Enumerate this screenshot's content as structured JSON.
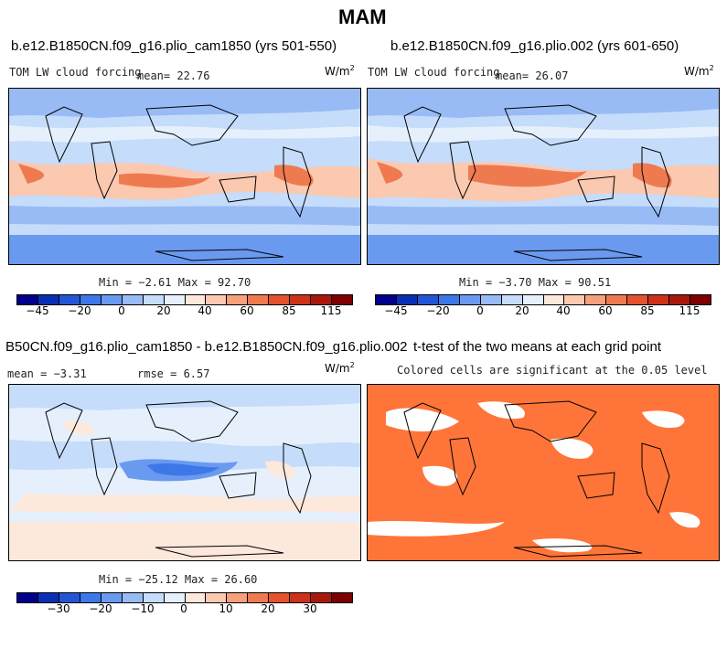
{
  "title": "MAM",
  "panels": {
    "p1": {
      "title": "b.e12.B1850CN.f09_g16.plio_cam1850 (yrs 501-550)",
      "variable": "TOM LW cloud forcing",
      "mean_text": "mean=  22.76",
      "unit": "W/m",
      "unit_exp": "2",
      "minmax": "Min =  −2.61 Max =  92.70"
    },
    "p2": {
      "title": "b.e12.B1850CN.f09_g16.plio.002 (yrs 601-650)",
      "variable": "TOM LW cloud forcing",
      "mean_text": "mean=  26.07",
      "unit": "W/m",
      "unit_exp": "2",
      "minmax": "Min =  −3.70 Max =  90.51"
    },
    "p3": {
      "title": "B50CN.f09_g16.plio_cam1850 - b.e12.B1850CN.f09_g16.plio.002",
      "mean_text": "mean =  −3.31",
      "rmse_text": "rmse =   6.57",
      "unit": "W/m",
      "unit_exp": "2",
      "minmax": "Min = −25.12 Max =  26.60"
    },
    "p4": {
      "title": "t-test of the two means at each grid point",
      "subtitle": "Colored cells are significant at the 0.05 level"
    }
  },
  "colorbars": {
    "abs": {
      "colors": [
        "#00008b",
        "#0b2fb4",
        "#2356d6",
        "#3d78e8",
        "#6a9af0",
        "#98bbf5",
        "#c5dcfb",
        "#e6f0fd",
        "#fde8dc",
        "#fbc9b0",
        "#f6a07c",
        "#ef7a50",
        "#e4532e",
        "#cd3117",
        "#a9180c",
        "#7d0000"
      ],
      "labels": [
        "−45",
        "−20",
        "0",
        "20",
        "40",
        "60",
        "85",
        "115"
      ]
    },
    "diff": {
      "colors": [
        "#00008b",
        "#0b2fb4",
        "#2356d6",
        "#3d78e8",
        "#6a9af0",
        "#98bbf5",
        "#c5dcfb",
        "#e6f0fd",
        "#fde8dc",
        "#fbc9b0",
        "#f6a07c",
        "#ef7a50",
        "#e4532e",
        "#cd3117",
        "#a9180c",
        "#7d0000"
      ],
      "labels": [
        "−30",
        "−20",
        "−10",
        "0",
        "10",
        "20",
        "30"
      ]
    }
  },
  "map_colors": {
    "ocean_base": "#c5dcfb",
    "land_base": "#e6f0fd",
    "signif": "#ff7539"
  }
}
